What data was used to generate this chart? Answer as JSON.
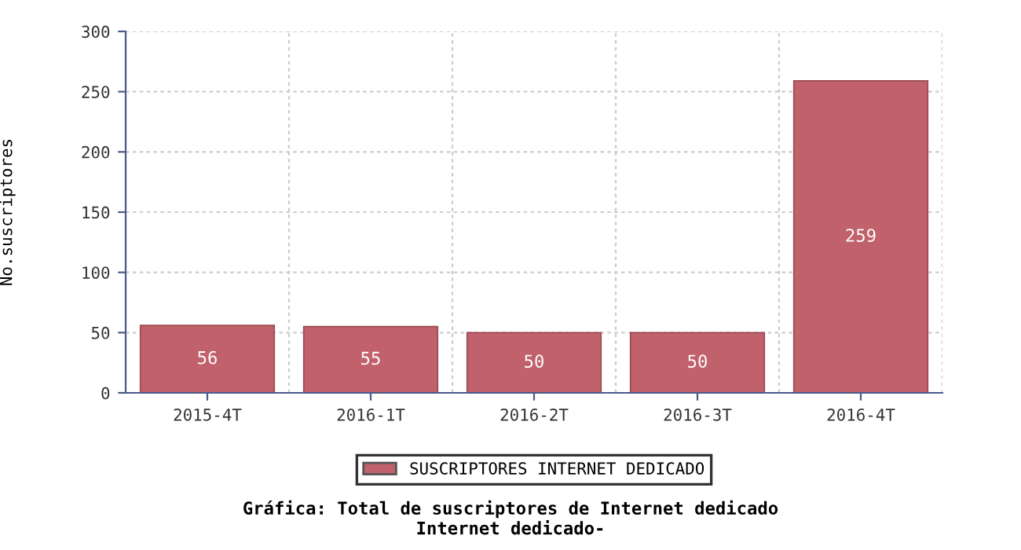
{
  "chart_data": {
    "type": "bar",
    "title": "Gráfica: Total de suscriptores de Internet dedicado",
    "subtitle": "Internet dedicado-",
    "ylabel": "No.suscriptores",
    "categories": [
      "2015-4T",
      "2016-1T",
      "2016-2T",
      "2016-3T",
      "2016-4T"
    ],
    "series": [
      {
        "name": "SUSCRIPTORES INTERNET DEDICADO",
        "color": "#c0616b",
        "values": [
          56,
          55,
          50,
          50,
          259
        ]
      }
    ],
    "ylim": [
      0,
      300
    ],
    "yticks": [
      0,
      50,
      100,
      150,
      200,
      250,
      300
    ],
    "grid": true,
    "legend": "bottom",
    "data_labels": true
  }
}
